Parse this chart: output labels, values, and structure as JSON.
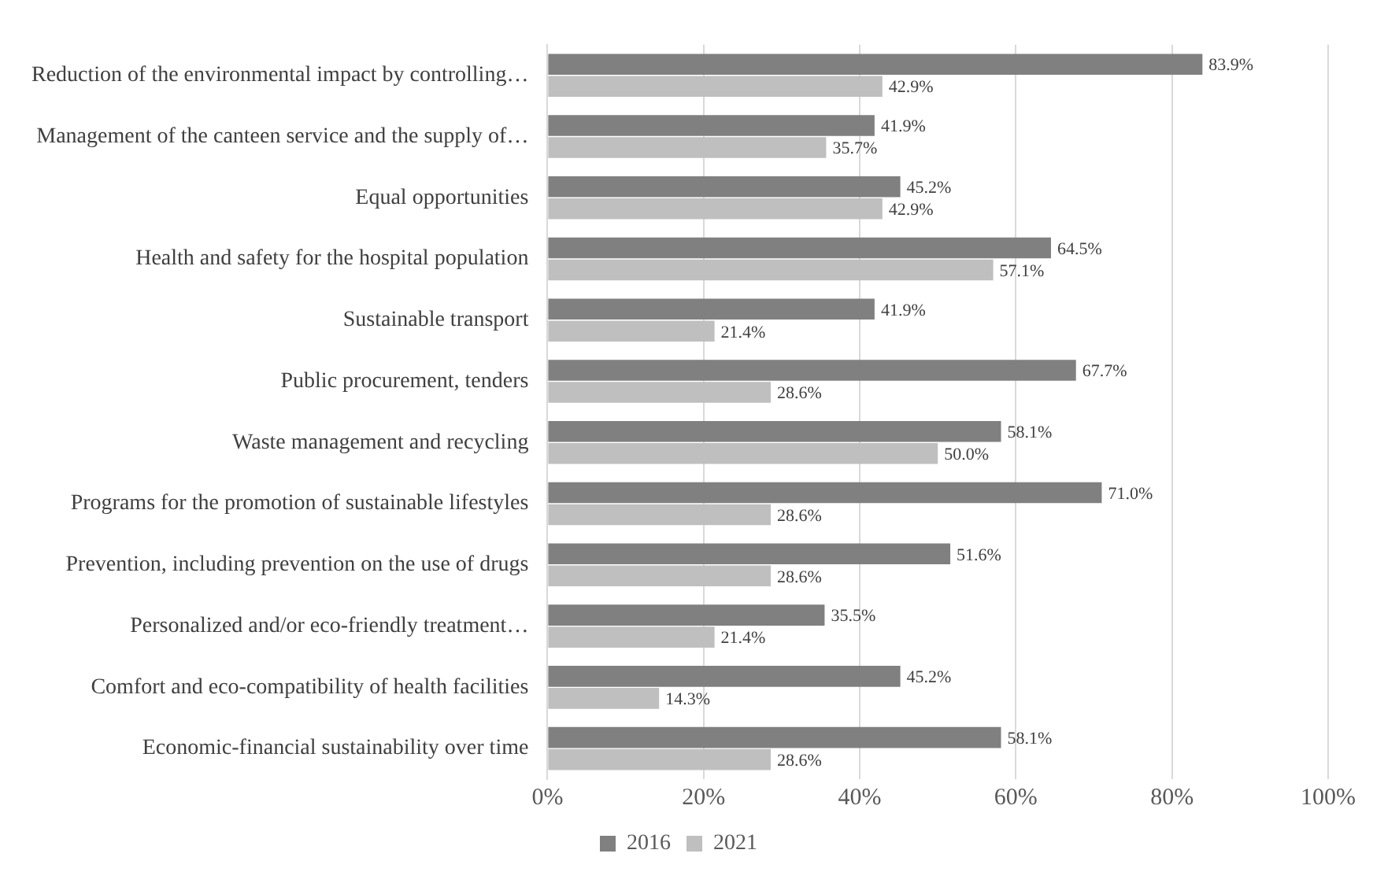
{
  "chart_data": {
    "type": "bar",
    "orientation": "horizontal",
    "categories": [
      "Reduction of the environmental impact by controlling…",
      "Management of the canteen service and the supply of…",
      "Equal opportunities",
      "Health and safety for the hospital population",
      "Sustainable transport",
      "Public procurement, tenders",
      "Waste management and recycling",
      "Programs for the promotion of sustainable lifestyles",
      "Prevention, including prevention on the use of drugs",
      "Personalized and/or eco-friendly treatment…",
      "Comfort and eco-compatibility of health facilities",
      "Economic-financial sustainability over time"
    ],
    "series": [
      {
        "name": "2016",
        "color": "#808080",
        "values": [
          83.9,
          41.9,
          45.2,
          64.5,
          41.9,
          67.7,
          58.1,
          71.0,
          51.6,
          35.5,
          45.2,
          58.1
        ],
        "value_labels": [
          "83.9%",
          "41.9%",
          "45.2%",
          "64.5%",
          "41.9%",
          "67.7%",
          "58.1%",
          "71.0%",
          "51.6%",
          "35.5%",
          "45.2%",
          "58.1%"
        ]
      },
      {
        "name": "2021",
        "color": "#bfbfbf",
        "values": [
          42.9,
          35.7,
          42.9,
          57.1,
          21.4,
          28.6,
          50.0,
          28.6,
          28.6,
          21.4,
          14.3,
          28.6
        ],
        "value_labels": [
          "42.9%",
          "35.7%",
          "42.9%",
          "57.1%",
          "21.4%",
          "28.6%",
          "50.0%",
          "28.6%",
          "28.6%",
          "21.4%",
          "14.3%",
          "28.6%"
        ]
      }
    ],
    "xlim": [
      0,
      100
    ],
    "xticks": [
      {
        "value": 0,
        "label": "0%"
      },
      {
        "value": 20,
        "label": "20%"
      },
      {
        "value": 40,
        "label": "40%"
      },
      {
        "value": 60,
        "label": "60%"
      },
      {
        "value": 80,
        "label": "80%"
      },
      {
        "value": 100,
        "label": "100%"
      }
    ],
    "grid": "x",
    "legend": "bottom"
  }
}
